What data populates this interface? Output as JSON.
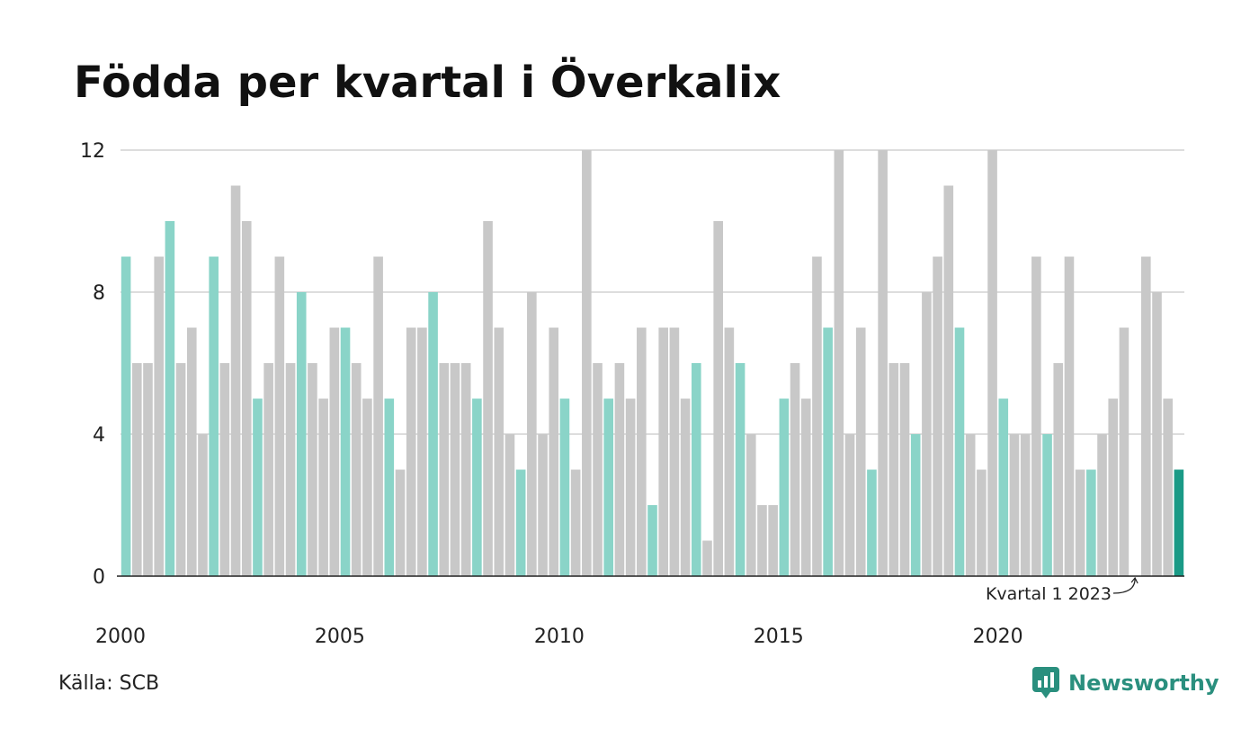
{
  "title": "Födda per kvartal i Överkalix",
  "source": "Källa: SCB",
  "brand": "Newsworthy",
  "colors": {
    "q1": "#8ad4c8",
    "other": "#c8c8c8",
    "latest": "#1a9a86",
    "grid": "#dddddd",
    "axis": "#222222",
    "brand": "#2a8f7e"
  },
  "chart_data": {
    "type": "bar",
    "title": "Födda per kvartal i Överkalix",
    "xlabel": "",
    "ylabel": "",
    "ylim": [
      0,
      12
    ],
    "y_ticks": [
      "0",
      "4",
      "8",
      "12"
    ],
    "x_ticks": [
      "2000",
      "2005",
      "2010",
      "2015",
      "2020"
    ],
    "grid": true,
    "start_year": 2000,
    "values": [
      9,
      6,
      6,
      9,
      10,
      6,
      7,
      4,
      9,
      6,
      11,
      10,
      5,
      6,
      9,
      6,
      8,
      6,
      5,
      7,
      7,
      6,
      5,
      9,
      5,
      3,
      7,
      7,
      8,
      6,
      6,
      6,
      5,
      10,
      7,
      4,
      3,
      8,
      4,
      7,
      5,
      3,
      12,
      6,
      5,
      6,
      5,
      7,
      2,
      7,
      7,
      5,
      6,
      1,
      10,
      7,
      6,
      4,
      2,
      2,
      5,
      6,
      5,
      9,
      7,
      12,
      4,
      7,
      3,
      12,
      6,
      6,
      4,
      8,
      9,
      11,
      7,
      4,
      3,
      12,
      5,
      4,
      4,
      9,
      4,
      6,
      9,
      3,
      3,
      4,
      5,
      7,
      0,
      9,
      8,
      5,
      3
    ],
    "highlight": "Kvartal 1",
    "annotation": "Kvartal 1 2023"
  }
}
